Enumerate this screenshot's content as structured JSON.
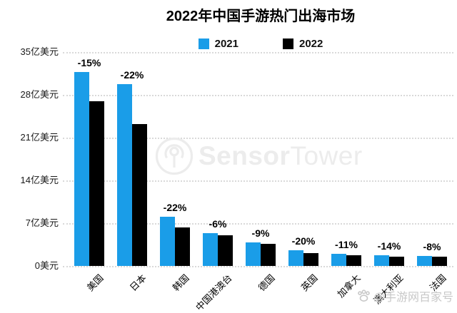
{
  "chart_data": {
    "type": "bar",
    "title": "2022年中国手游热门出海市场",
    "categories": [
      "美国",
      "日本",
      "韩国",
      "中国港澳台",
      "德国",
      "英国",
      "加拿大",
      "澳大利亚",
      "法国"
    ],
    "series": [
      {
        "name": "2021",
        "color": "#1A9DE8",
        "values": [
          31.7,
          29.7,
          8.1,
          5.4,
          3.9,
          2.6,
          2.0,
          1.8,
          1.6
        ]
      },
      {
        "name": "2022",
        "color": "#000000",
        "values": [
          27.0,
          23.2,
          6.3,
          5.0,
          3.6,
          2.1,
          1.8,
          1.55,
          1.47
        ]
      }
    ],
    "bar_labels": [
      "-15%",
      "-22%",
      "-22%",
      "-6%",
      "-9%",
      "-20%",
      "-11%",
      "-14%",
      "-8%"
    ],
    "unit": "亿美元",
    "y_ticks": [
      {
        "value": 35,
        "label": "35亿美元"
      },
      {
        "value": 28,
        "label": "28亿美元"
      },
      {
        "value": 21,
        "label": "21亿美元"
      },
      {
        "value": 14,
        "label": "14亿美元"
      },
      {
        "value": 7,
        "label": "7亿美元"
      },
      {
        "value": 0,
        "label": "0美元"
      }
    ],
    "ylim": [
      0,
      35
    ],
    "grid": true,
    "legend_position": "top-center"
  },
  "watermarks": {
    "center_logo": {
      "icon": "sensortower-logo-icon",
      "text_bold": "Sensor",
      "text_light": "Tower",
      "color": "#ececec"
    },
    "bottom_right": {
      "icon": "paw-icon",
      "text": "@手游网百家号",
      "color": "#c8c8c8"
    }
  }
}
